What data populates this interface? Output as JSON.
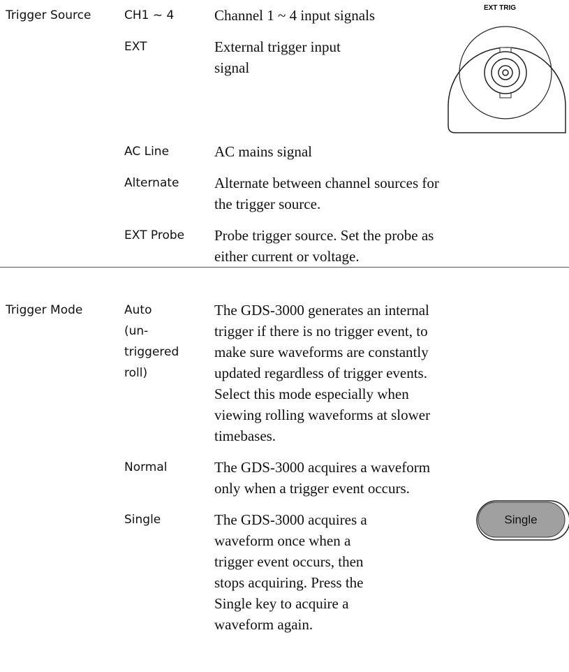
{
  "sections": [
    {
      "label": "Trigger Source",
      "rows": [
        {
          "option": [
            "CH1 ~ 4"
          ],
          "description": [
            "Channel 1 ~ 4 input signals"
          ]
        },
        {
          "option": [
            "EXT"
          ],
          "description": [
            "External trigger input",
            "signal"
          ],
          "image_label": "EXT TRIG"
        },
        {
          "option": [
            "AC Line"
          ],
          "description": [
            "AC mains signal"
          ]
        },
        {
          "option": [
            "Alternate"
          ],
          "description": [
            "Alternate between channel sources for",
            "the trigger source."
          ]
        },
        {
          "option": [
            "EXT Probe"
          ],
          "description": [
            "Probe trigger source. Set the probe as",
            "either current or voltage."
          ]
        }
      ]
    },
    {
      "label": "Trigger Mode",
      "rows": [
        {
          "option": [
            "Auto",
            "(un-",
            "triggered",
            "roll)"
          ],
          "description": [
            "The GDS-3000 generates an internal",
            "trigger if there is no trigger event, to",
            "make sure waveforms are constantly",
            "updated regardless of trigger events.",
            "Select this mode especially when",
            "viewing rolling waveforms at slower",
            "timebases."
          ]
        },
        {
          "option": [
            "Normal"
          ],
          "description": [
            "The GDS-3000 acquires a waveform",
            "only when a trigger event occurs."
          ]
        },
        {
          "option": [
            "Single"
          ],
          "description": [
            "The GDS-3000 acquires a",
            "waveform once when a",
            "trigger event occurs, then",
            "stops acquiring. Press the",
            "Single key to acquire a",
            "waveform again."
          ],
          "image_label": "Single"
        }
      ]
    }
  ]
}
